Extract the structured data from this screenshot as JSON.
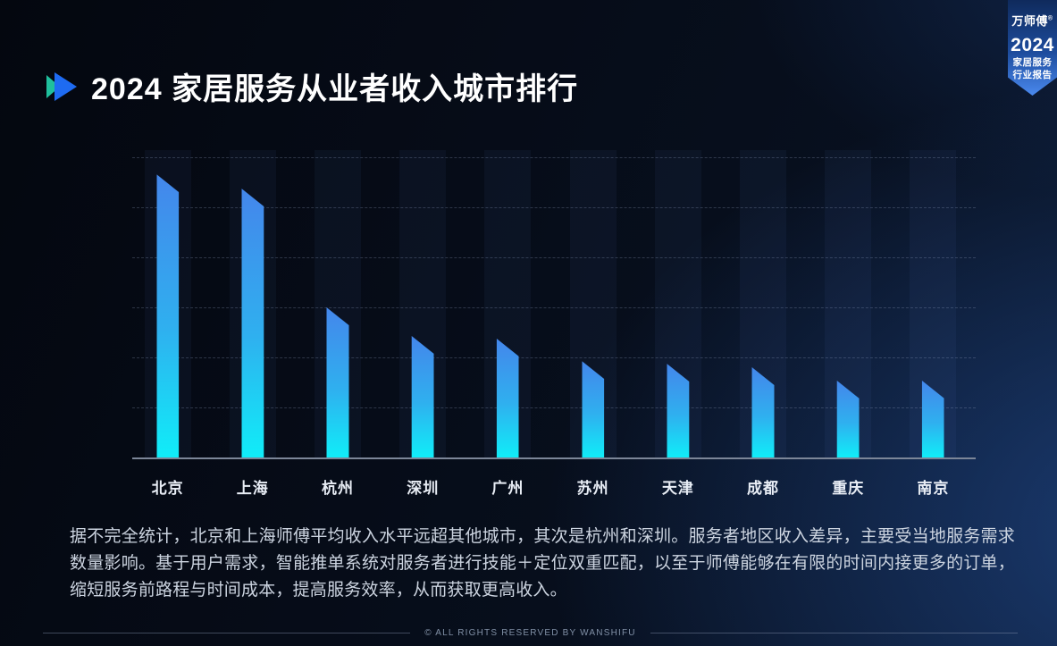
{
  "header": {
    "title": "2024 家居服务从业者收入城市排行"
  },
  "badge": {
    "brand": "万师傅",
    "reg_mark": "®",
    "year": "2024",
    "line1": "家居服务",
    "line2": "行业报告"
  },
  "chart_data": {
    "type": "bar",
    "title": "2024 家居服务从业者收入城市排行",
    "categories": [
      "北京",
      "上海",
      "杭州",
      "深圳",
      "广州",
      "苏州",
      "天津",
      "成都",
      "重庆",
      "南京"
    ],
    "values": [
      100,
      95,
      53,
      43,
      42,
      34,
      33,
      32,
      27,
      27
    ],
    "value_note": "条形无数值标注，数值为按高度估算的相对收入指数（北京=100）",
    "xlabel": "",
    "ylabel": "",
    "ylim": [
      0,
      106
    ],
    "gridlines": 6,
    "grid": "horizontal-dashed",
    "legend": false
  },
  "description": "据不完全统计，北京和上海师傅平均收入水平远超其他城市，其次是杭州和深圳。服务者地区收入差异，主要受当地服务需求数量影响。基于用户需求，智能推单系统对服务者进行技能＋定位双重匹配，以至于师傅能够在有限的时间内接更多的订单，缩短服务前路程与时间成本，提高服务效率，从而获取更高收入。",
  "footer": {
    "copyright": "© ALL RIGHTS RESERVED BY WANSHIFU"
  },
  "colors": {
    "background_dark": "#060c18",
    "background_glow": "#2c63bd",
    "bar_top": "#4486eb",
    "bar_bottom": "#10edf8",
    "accent_teal": "#1fbf9c",
    "accent_blue": "#1e6bf2",
    "badge_top": "#0f2a5c",
    "badge_bottom": "#4a89ee",
    "text_title": "#ffffff",
    "text_body": "#ccd4e0",
    "text_footer": "#8190a6",
    "axis_line": "#7c8698"
  }
}
